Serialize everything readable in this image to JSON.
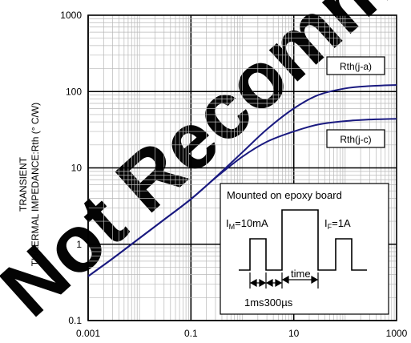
{
  "chart_data": {
    "type": "line",
    "x_scale": "log",
    "y_scale": "log",
    "xlim": [
      0.001,
      1000
    ],
    "ylim": [
      0.1,
      1000
    ],
    "x_ticks": [
      "0.001",
      "0.1",
      "10",
      "1000"
    ],
    "y_ticks": [
      "1000",
      "100",
      "10",
      "1",
      "0.1"
    ],
    "ylabel_line1": "TRANSIENT",
    "ylabel_line2": "THAERMAL IMPEDANCE:Rth (° C/W)",
    "grid": true,
    "series": [
      {
        "name": "Rth(j-a)",
        "color": "#1a1a80",
        "points": [
          [
            0.001,
            0.38
          ],
          [
            0.003,
            0.65
          ],
          [
            0.01,
            1.2
          ],
          [
            0.03,
            2.1
          ],
          [
            0.1,
            3.9
          ],
          [
            0.3,
            7.5
          ],
          [
            1,
            16
          ],
          [
            3,
            32
          ],
          [
            10,
            60
          ],
          [
            30,
            90
          ],
          [
            100,
            110
          ],
          [
            300,
            118
          ],
          [
            1000,
            122
          ]
        ]
      },
      {
        "name": "Rth(j-c)",
        "color": "#1a1a80",
        "points": [
          [
            0.001,
            0.38
          ],
          [
            0.003,
            0.65
          ],
          [
            0.01,
            1.2
          ],
          [
            0.03,
            2.1
          ],
          [
            0.1,
            3.9
          ],
          [
            0.3,
            7.4
          ],
          [
            1,
            14
          ],
          [
            3,
            22
          ],
          [
            10,
            30
          ],
          [
            30,
            37
          ],
          [
            100,
            41
          ],
          [
            300,
            43
          ],
          [
            1000,
            44
          ]
        ]
      }
    ],
    "labels": [
      {
        "text": "Rth(j-a)",
        "x": 100,
        "y": 185
      },
      {
        "text": "Rth(j-c)",
        "x": 100,
        "y": 32
      }
    ],
    "inset": {
      "title": "Mounted on epoxy board",
      "im_prefix": "I",
      "im_sub": "M",
      "im_value": "=10mA",
      "if_prefix": "I",
      "if_sub": "F",
      "if_value": "=1A",
      "time_label": "time",
      "pulse_1ms": "1ms",
      "pulse_300": "300",
      "pulse_mu": "µs"
    },
    "watermark": "Not Recommended for New Designs"
  }
}
